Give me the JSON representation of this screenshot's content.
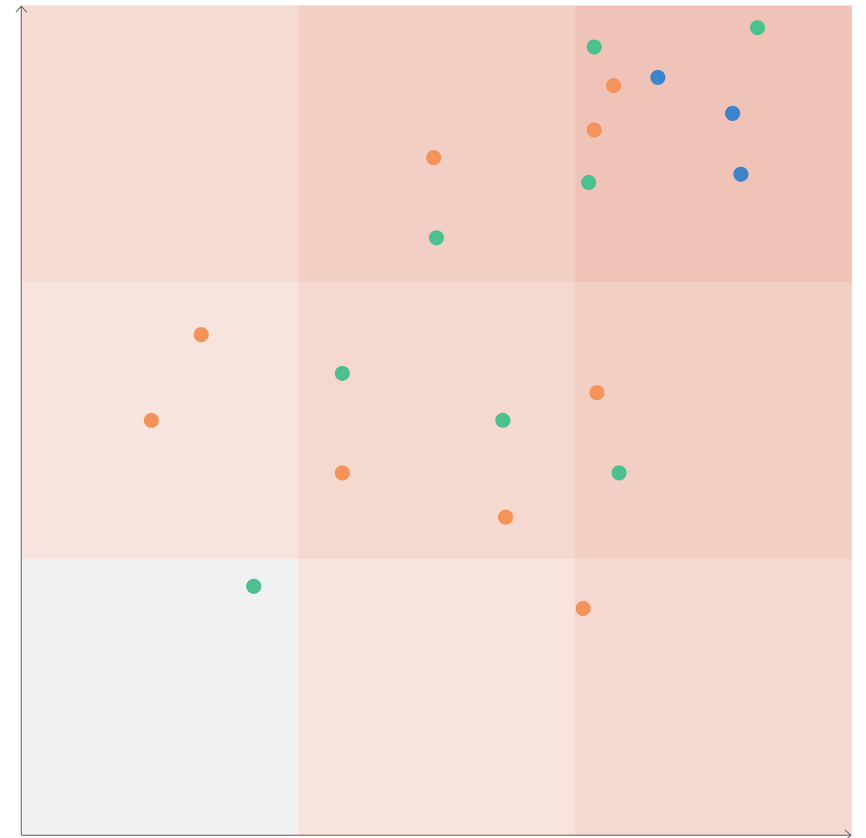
{
  "chart_data": {
    "type": "scatter",
    "xlim": [
      0,
      3
    ],
    "ylim": [
      0,
      3
    ],
    "cell_colors": [
      [
        "#f5dbd2",
        "#f2cfc5",
        "#efc3b8"
      ],
      [
        "#f8e4de",
        "#f5d9d0",
        "#f2cfc5"
      ],
      [
        "#f0f1f3",
        "#f8e4de",
        "#f5d9d0"
      ]
    ],
    "series": [
      {
        "color": "#4cc08e",
        "x": [
          2.66,
          2.07,
          2.05,
          1.5,
          1.16,
          1.74,
          2.16,
          0.84
        ],
        "values": [
          2.92,
          2.85,
          2.36,
          2.16,
          1.67,
          1.5,
          1.31,
          0.9
        ]
      },
      {
        "color": "#f4935a",
        "x": [
          2.14,
          2.07,
          1.49,
          0.65,
          0.47,
          2.08,
          1.16,
          1.75,
          2.03
        ],
        "values": [
          2.71,
          2.55,
          2.45,
          1.81,
          1.5,
          1.6,
          1.31,
          1.15,
          0.82
        ]
      },
      {
        "color": "#3d85c8",
        "x": [
          2.3,
          2.57,
          2.6
        ],
        "values": [
          2.74,
          2.61,
          2.39
        ]
      }
    ]
  }
}
